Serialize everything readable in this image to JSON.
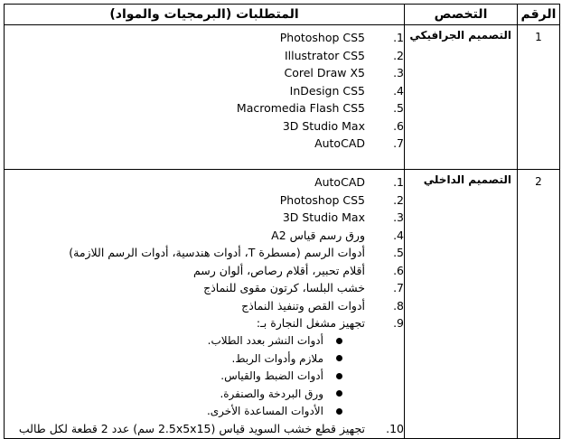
{
  "header": {
    "number": "الرقم",
    "specialization": "التخصص",
    "requirements": "المتطلبات (البرمجيات والمواد)"
  },
  "rows": [
    {
      "number": "1",
      "specialization": "التصميم الجرافيكي",
      "items": [
        {
          "n": "1.",
          "text": "Photoshop CS5"
        },
        {
          "n": "2.",
          "text": "Illustrator CS5"
        },
        {
          "n": "3.",
          "text": "Corel Draw X5"
        },
        {
          "n": "4.",
          "text": "InDesign CS5"
        },
        {
          "n": "5.",
          "text": "Macromedia Flash CS5"
        },
        {
          "n": "6.",
          "text": "3D Studio Max"
        },
        {
          "n": "7.",
          "text": "AutoCAD"
        }
      ]
    },
    {
      "number": "2",
      "specialization": "التصميم الداخلي",
      "items": [
        {
          "n": "1.",
          "text": "AutoCAD"
        },
        {
          "n": "2.",
          "text": "Photoshop CS5"
        },
        {
          "n": "3.",
          "text": "3D Studio Max"
        },
        {
          "n": "4.",
          "text": "ورق رسم قياس A2"
        },
        {
          "n": "5.",
          "text": "أدوات الرسم (مسطرة T، أدوات هندسية، أدوات الرسم اللازمة)"
        },
        {
          "n": "6.",
          "text": "أقلام تحبير، أقلام رصاص، ألوان رسم"
        },
        {
          "n": "7.",
          "text": "خشب البلسا، كرتون مقوى للنماذج"
        },
        {
          "n": "8.",
          "text": "أدوات القص وتنفيذ النماذج"
        },
        {
          "n": "9.",
          "text": "تجهيز مشغل النجارة بـ:"
        }
      ],
      "bullets": [
        "أدوات النشر بعدد الطلاب.",
        "ملازم وأدوات الربط.",
        "أدوات الضبط والقياس.",
        "ورق البردخة والصنفرة.",
        "الأدوات المساعدة الأخرى."
      ],
      "last_item": {
        "n": "10.",
        "text": "تجهيز قطع خشب السويد قياس (2.5x5x15 سم) عدد 2 قطعة لكل طالب"
      }
    }
  ]
}
